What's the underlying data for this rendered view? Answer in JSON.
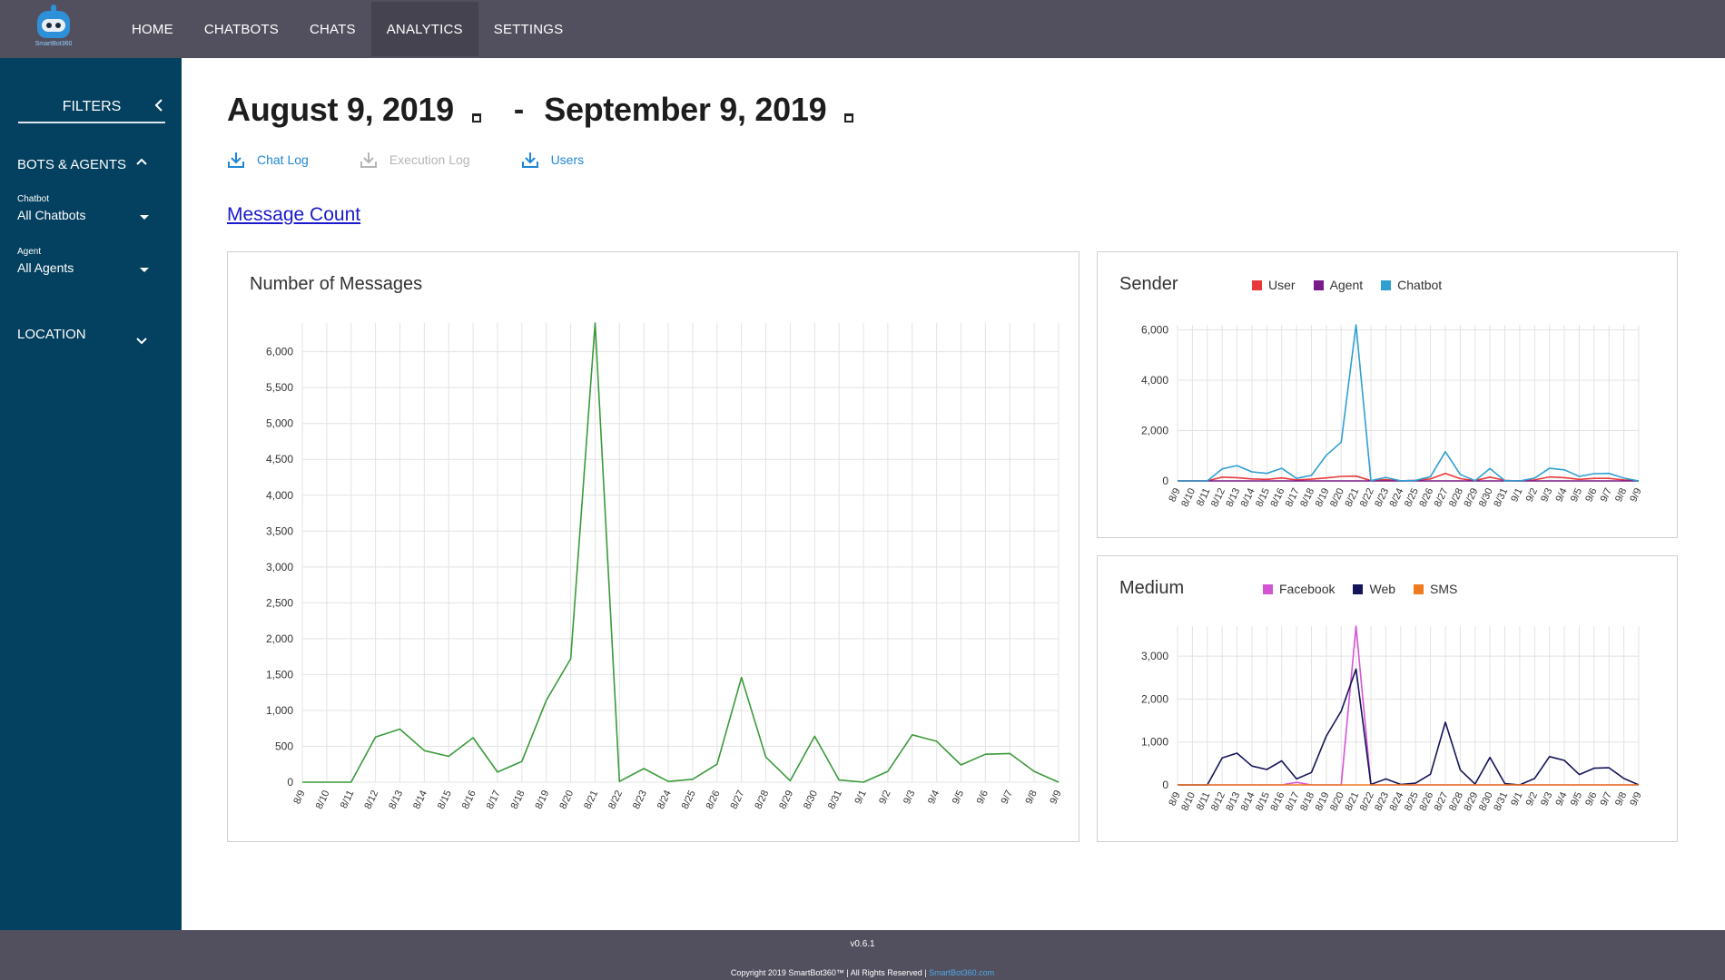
{
  "nav": {
    "logo_text": "SmartBot360",
    "items": [
      "HOME",
      "CHATBOTS",
      "CHATS",
      "ANALYTICS",
      "SETTINGS"
    ],
    "active": "ANALYTICS"
  },
  "sidebar": {
    "title": "FILTERS",
    "sections": {
      "bots_agents": "BOTS & AGENTS",
      "location": "LOCATION"
    },
    "chatbot": {
      "label": "Chatbot",
      "value": "All Chatbots"
    },
    "agent": {
      "label": "Agent",
      "value": "All Agents"
    }
  },
  "main": {
    "date_from": "August 9, 2019",
    "date_separator": "-",
    "date_to": "September 9, 2019",
    "downloads": [
      {
        "label": "Chat Log",
        "enabled": true
      },
      {
        "label": "Execution Log",
        "enabled": false
      },
      {
        "label": "Users",
        "enabled": true
      }
    ],
    "section_title": "Message Count"
  },
  "colors": {
    "total": "#3a9a3a",
    "user": "#e8393a",
    "agent": "#7a1a8a",
    "chatbot": "#2e9fd1",
    "facebook": "#d455d4",
    "web": "#14145a",
    "sms": "#f07a20"
  },
  "chart_data": [
    {
      "type": "line",
      "title": "Number of Messages",
      "ylim": [
        0,
        6400
      ],
      "yticks": [
        0,
        500,
        1000,
        1500,
        2000,
        2500,
        3000,
        3500,
        4000,
        4500,
        5000,
        5500,
        6000
      ],
      "ytick_labels": [
        "0",
        "500",
        "1,000",
        "1,500",
        "2,000",
        "2,500",
        "3,000",
        "3,500",
        "4,000",
        "4,500",
        "5,000",
        "5,500",
        "6,000"
      ],
      "x": [
        "8/9",
        "8/10",
        "8/11",
        "8/12",
        "8/13",
        "8/14",
        "8/15",
        "8/16",
        "8/17",
        "8/18",
        "8/19",
        "8/20",
        "8/21",
        "8/22",
        "8/23",
        "8/24",
        "8/25",
        "8/26",
        "8/27",
        "8/28",
        "8/29",
        "8/30",
        "8/31",
        "9/1",
        "9/2",
        "9/3",
        "9/4",
        "9/5",
        "9/6",
        "9/7",
        "9/8",
        "9/9"
      ],
      "grid": true,
      "series": [
        {
          "values": [
            0,
            0,
            0,
            630,
            740,
            440,
            360,
            620,
            140,
            290,
            1140,
            1720,
            6400,
            10,
            190,
            10,
            40,
            250,
            1460,
            350,
            20,
            640,
            30,
            0,
            150,
            660,
            570,
            240,
            390,
            400,
            150,
            0
          ]
        }
      ]
    },
    {
      "type": "line",
      "title": "Sender",
      "ylim": [
        0,
        6200
      ],
      "yticks": [
        0,
        2000,
        4000,
        6000
      ],
      "ytick_labels": [
        "0",
        "2,000",
        "4,000",
        "6,000"
      ],
      "x": [
        "8/9",
        "8/10",
        "8/11",
        "8/12",
        "8/13",
        "8/14",
        "8/15",
        "8/16",
        "8/17",
        "8/18",
        "8/19",
        "8/20",
        "8/21",
        "8/22",
        "8/23",
        "8/24",
        "8/25",
        "8/26",
        "8/27",
        "8/28",
        "8/29",
        "8/30",
        "8/31",
        "9/1",
        "9/2",
        "9/3",
        "9/4",
        "9/5",
        "9/6",
        "9/7",
        "9/8",
        "9/9"
      ],
      "grid": true,
      "legend": "top",
      "series": [
        {
          "name": "User",
          "values": [
            0,
            0,
            0,
            150,
            130,
            80,
            60,
            120,
            40,
            70,
            120,
            180,
            190,
            10,
            50,
            5,
            20,
            80,
            300,
            90,
            10,
            150,
            20,
            0,
            40,
            160,
            130,
            60,
            100,
            100,
            40,
            0
          ]
        },
        {
          "name": "Agent",
          "values": [
            0,
            0,
            0,
            0,
            0,
            0,
            0,
            0,
            0,
            0,
            0,
            0,
            0,
            0,
            0,
            0,
            0,
            0,
            0,
            0,
            0,
            0,
            0,
            0,
            0,
            0,
            0,
            0,
            0,
            0,
            0,
            0
          ]
        },
        {
          "name": "Chatbot",
          "values": [
            0,
            0,
            0,
            480,
            610,
            360,
            300,
            500,
            100,
            220,
            1020,
            1540,
            6200,
            10,
            140,
            5,
            20,
            170,
            1160,
            260,
            10,
            490,
            10,
            0,
            110,
            500,
            440,
            180,
            290,
            300,
            110,
            0
          ]
        }
      ]
    },
    {
      "type": "line",
      "title": "Medium",
      "ylim": [
        0,
        3700
      ],
      "yticks": [
        0,
        1000,
        2000,
        3000
      ],
      "ytick_labels": [
        "0",
        "1,000",
        "2,000",
        "3,000"
      ],
      "x": [
        "8/9",
        "8/10",
        "8/11",
        "8/12",
        "8/13",
        "8/14",
        "8/15",
        "8/16",
        "8/17",
        "8/18",
        "8/19",
        "8/20",
        "8/21",
        "8/22",
        "8/23",
        "8/24",
        "8/25",
        "8/26",
        "8/27",
        "8/28",
        "8/29",
        "8/30",
        "8/31",
        "9/1",
        "9/2",
        "9/3",
        "9/4",
        "9/5",
        "9/6",
        "9/7",
        "9/8",
        "9/9"
      ],
      "grid": true,
      "legend": "top",
      "series": [
        {
          "name": "Facebook",
          "values": [
            0,
            0,
            0,
            0,
            0,
            0,
            0,
            0,
            60,
            0,
            0,
            0,
            3700,
            0,
            0,
            0,
            0,
            0,
            0,
            0,
            0,
            0,
            0,
            0,
            0,
            0,
            0,
            0,
            0,
            0,
            0,
            0
          ]
        },
        {
          "name": "Web",
          "values": [
            0,
            0,
            0,
            630,
            740,
            440,
            360,
            560,
            140,
            290,
            1140,
            1720,
            2700,
            10,
            140,
            10,
            40,
            250,
            1460,
            350,
            20,
            640,
            30,
            0,
            150,
            660,
            570,
            240,
            390,
            400,
            150,
            0
          ]
        },
        {
          "name": "SMS",
          "values": [
            0,
            0,
            0,
            0,
            0,
            0,
            0,
            0,
            0,
            0,
            0,
            0,
            0,
            0,
            0,
            0,
            0,
            0,
            0,
            0,
            0,
            0,
            0,
            0,
            0,
            0,
            0,
            0,
            0,
            0,
            0,
            0
          ]
        }
      ]
    }
  ],
  "footer": {
    "version": "v0.6.1",
    "copyright": "Copyright 2019 SmartBot360™ | All Rights Reserved |",
    "link": "SmartBot360.com"
  }
}
